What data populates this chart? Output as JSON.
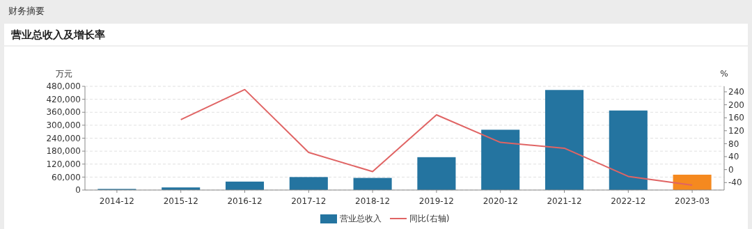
{
  "chart_data": {
    "type": "bar",
    "title": "营业总收入及增长率",
    "annotations": [
      "财务摘要"
    ],
    "ylabel": "万元",
    "y2label": "%",
    "categories": [
      "2014-12",
      "2015-12",
      "2016-12",
      "2017-12",
      "2018-12",
      "2019-12",
      "2020-12",
      "2021-12",
      "2022-12",
      "2023-03"
    ],
    "series": [
      {
        "name": "营业总收入",
        "color": "#2474a0",
        "colors": [
          "#2474a0",
          "#2474a0",
          "#2474a0",
          "#2474a0",
          "#2474a0",
          "#2474a0",
          "#2474a0",
          "#2474a0",
          "#2474a0",
          "#f5891f"
        ],
        "values": [
          5000,
          12000,
          39000,
          60000,
          56000,
          152000,
          279000,
          463000,
          368000,
          71000
        ]
      },
      {
        "name": "同比(右轴)",
        "type": "line",
        "axis": "y2",
        "color": "#e06464",
        "values": [
          null,
          154,
          247,
          53,
          -6,
          169,
          84,
          66,
          -21,
          -48
        ]
      }
    ],
    "ylim": [
      0,
      480000
    ],
    "yticks": [
      {
        "value": 0,
        "label": "0"
      },
      {
        "value": 60000,
        "label": "60,000"
      },
      {
        "value": 120000,
        "label": "120,000"
      },
      {
        "value": 180000,
        "label": "180,000"
      },
      {
        "value": 240000,
        "label": "240,000"
      },
      {
        "value": 300000,
        "label": "300,000"
      },
      {
        "value": 360000,
        "label": "360,000"
      },
      {
        "value": 420000,
        "label": "420,000"
      },
      {
        "value": 480000,
        "label": "480,000"
      }
    ],
    "y2lim": [
      -63,
      257
    ],
    "y2ticks": [
      -40,
      0,
      40,
      80,
      120,
      160,
      200,
      240
    ],
    "grid": "y",
    "legend": "bottom",
    "marker": "none",
    "line_style": "solid"
  }
}
